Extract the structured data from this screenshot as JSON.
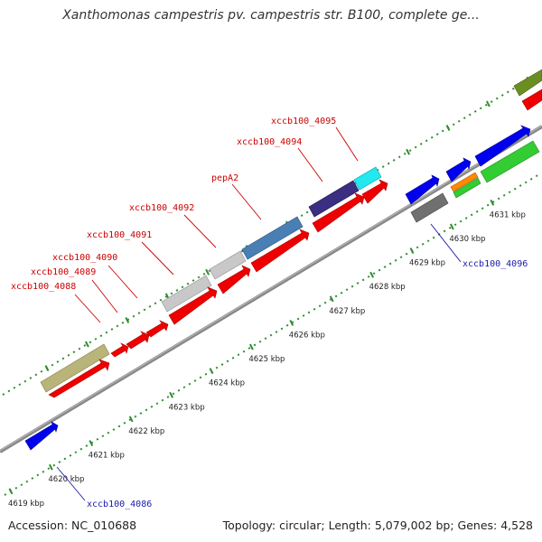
{
  "title": "Xanthomonas campestris pv. campestris str. B100, complete ge...",
  "footer": {
    "accession": "Accession: NC_010688",
    "summary": "Topology: circular; Length: 5,079,002 bp; Genes: 4,528"
  },
  "colors": {
    "backbone": "#888888",
    "tick": "#2e8b2e",
    "label_red": "#cc0000",
    "label_blue": "#1a1aaa"
  },
  "ticks": [
    "4619 kbp",
    "4620 kbp",
    "4621 kbp",
    "4622 kbp",
    "4623 kbp",
    "4624 kbp",
    "4625 kbp",
    "4626 kbp",
    "4627 kbp",
    "4628 kbp",
    "4629 kbp",
    "4630 kbp",
    "4631 kbp"
  ],
  "gene_labels": [
    {
      "text": "xccb100_4088",
      "color": "#cc0000"
    },
    {
      "text": "xccb100_4089",
      "color": "#cc0000"
    },
    {
      "text": "xccb100_4090",
      "color": "#cc0000"
    },
    {
      "text": "xccb100_4091",
      "color": "#cc0000"
    },
    {
      "text": "xccb100_4092",
      "color": "#cc0000"
    },
    {
      "text": "pepA2",
      "color": "#cc0000"
    },
    {
      "text": "xccb100_4094",
      "color": "#cc0000"
    },
    {
      "text": "xccb100_4095",
      "color": "#cc0000"
    },
    {
      "text": "xccb100_4096",
      "color": "#1a1aaa"
    },
    {
      "text": "xccb100_4086",
      "color": "#1a1aaa"
    }
  ],
  "feature_colors": [
    "#ee0000",
    "#b8b47a",
    "#c8c8c8",
    "#4a7fb5",
    "#3a2f80",
    "#22e8f0",
    "#0000ee",
    "#707070",
    "#ff8800",
    "#33cc33",
    "#6b8e23"
  ]
}
